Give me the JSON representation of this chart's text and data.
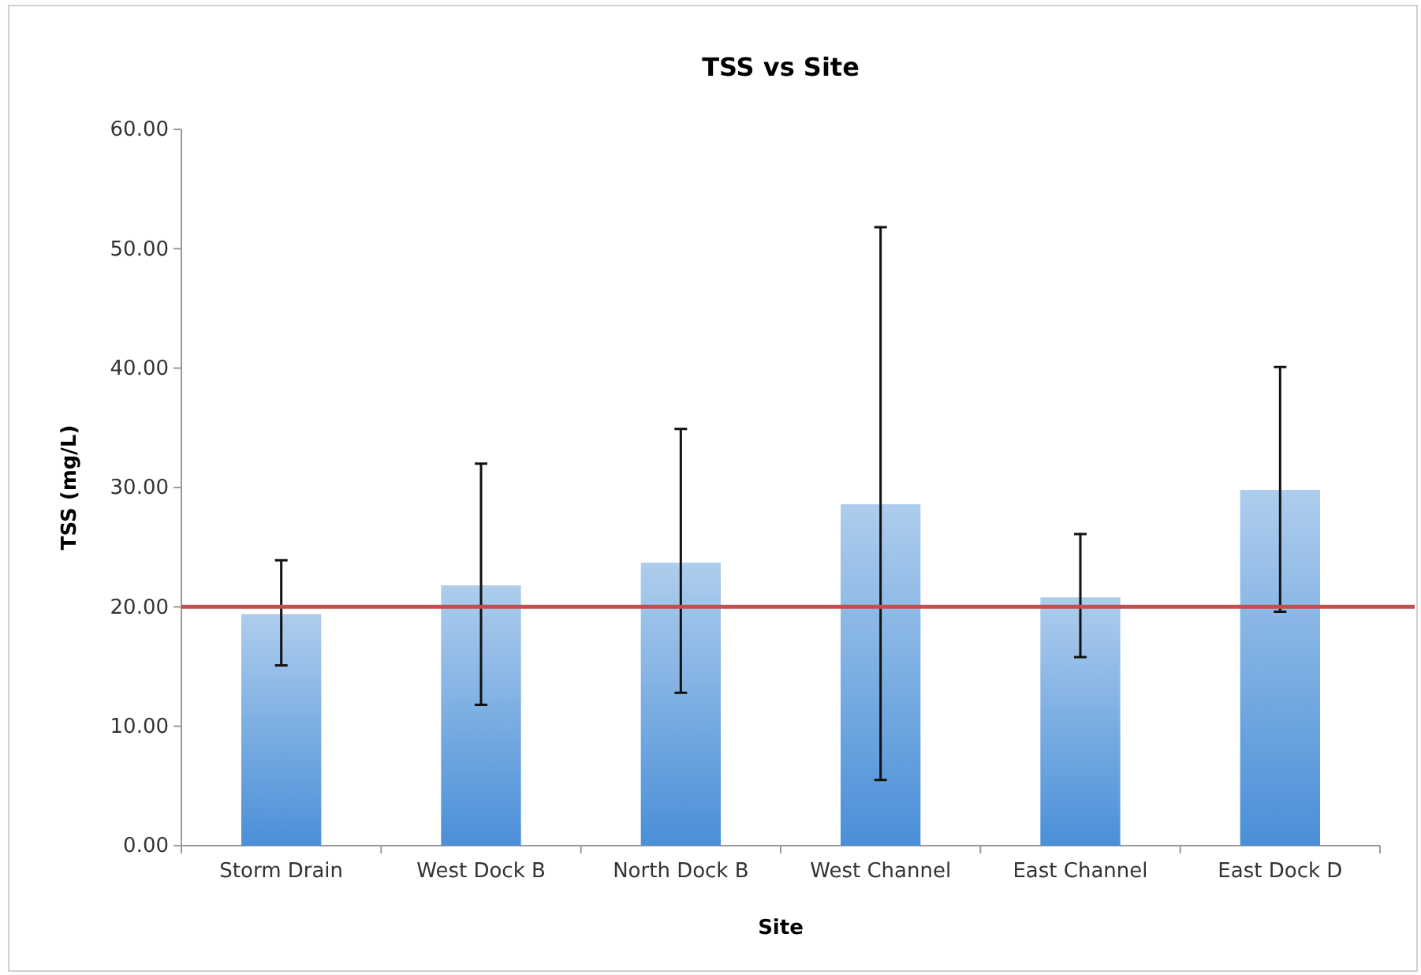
{
  "chart_data": {
    "type": "bar",
    "title": "TSS vs Site",
    "xlabel": "Site",
    "ylabel": "TSS (mg/L)",
    "categories": [
      "Storm Drain",
      "West Dock B",
      "North Dock B",
      "West Channel",
      "East Channel",
      "East Dock D"
    ],
    "values": [
      19.4,
      21.8,
      23.7,
      28.6,
      20.8,
      29.8
    ],
    "errors": [
      [
        15.1,
        23.9
      ],
      [
        11.8,
        32.0
      ],
      [
        12.8,
        34.9
      ],
      [
        5.5,
        51.8
      ],
      [
        15.8,
        26.1
      ],
      [
        19.6,
        40.1
      ]
    ],
    "color": "#4a8fd8",
    "ylim": [
      0,
      60
    ],
    "yticks": [
      {
        "value": 0,
        "label": "0.00"
      },
      {
        "value": 10,
        "label": "10.00"
      },
      {
        "value": 20,
        "label": "20.00"
      },
      {
        "value": 30,
        "label": "30.00"
      },
      {
        "value": 40,
        "label": "40.00"
      },
      {
        "value": 50,
        "label": "50.00"
      },
      {
        "value": 60,
        "label": "60.00"
      }
    ],
    "ref_lines": [
      {
        "axis": "y",
        "value": 20,
        "color": "#c0504d"
      }
    ],
    "grid": false
  }
}
